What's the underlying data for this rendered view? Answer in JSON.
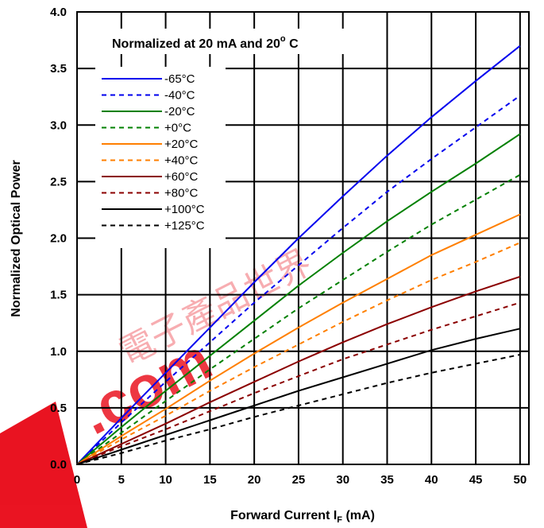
{
  "chart_data": {
    "type": "line",
    "title": "",
    "annotation": {
      "text": "Normalized at 20 mA and 20",
      "sup": "o",
      "suffix": " C"
    },
    "xlabel": {
      "main": "Forward Current I",
      "sub": "F",
      "suffix": " (mA)"
    },
    "ylabel": "Normalized Optical Power",
    "xlim": [
      0,
      51
    ],
    "ylim": [
      0,
      4.0
    ],
    "xticks": [
      0,
      5,
      10,
      15,
      20,
      25,
      30,
      35,
      40,
      45,
      50
    ],
    "yticks": [
      0.0,
      0.5,
      1.0,
      1.5,
      2.0,
      2.5,
      3.0,
      3.5,
      4.0
    ],
    "xtick_labels": [
      "0",
      "5",
      "10",
      "15",
      "20",
      "25",
      "30",
      "35",
      "40",
      "45",
      "50"
    ],
    "ytick_labels": [
      "0.0",
      "0.5",
      "1.0",
      "1.5",
      "2.0",
      "2.5",
      "3.0",
      "3.5",
      "4.0"
    ],
    "grid": true,
    "legend": "upper-left",
    "x": [
      0,
      5,
      10,
      15,
      20,
      25,
      30,
      35,
      40,
      45,
      50
    ],
    "series": [
      {
        "name": "-65°C",
        "color": "#0000ee",
        "dash": false,
        "values": [
          0,
          0.41,
          0.81,
          1.21,
          1.61,
          2.0,
          2.37,
          2.73,
          3.07,
          3.39,
          3.7
        ]
      },
      {
        "name": "-40°C",
        "color": "#0000ee",
        "dash": true,
        "values": [
          0,
          0.37,
          0.73,
          1.08,
          1.43,
          1.76,
          2.09,
          2.41,
          2.7,
          2.98,
          3.26
        ]
      },
      {
        "name": "-20°C",
        "color": "#008000",
        "dash": false,
        "values": [
          0,
          0.33,
          0.65,
          0.96,
          1.27,
          1.58,
          1.87,
          2.15,
          2.41,
          2.66,
          2.92
        ]
      },
      {
        "name": "+0°C",
        "color": "#008000",
        "dash": true,
        "values": [
          0,
          0.28,
          0.56,
          0.84,
          1.11,
          1.38,
          1.63,
          1.88,
          2.12,
          2.34,
          2.56
        ]
      },
      {
        "name": "+20°C",
        "color": "#ff7f00",
        "dash": false,
        "values": [
          0,
          0.25,
          0.49,
          0.74,
          0.98,
          1.21,
          1.43,
          1.64,
          1.85,
          2.03,
          2.21
        ]
      },
      {
        "name": "+40°C",
        "color": "#ff7f00",
        "dash": true,
        "values": [
          0,
          0.22,
          0.43,
          0.65,
          0.86,
          1.06,
          1.26,
          1.45,
          1.63,
          1.79,
          1.96
        ]
      },
      {
        "name": "+60°C",
        "color": "#8b0000",
        "dash": false,
        "values": [
          0,
          0.18,
          0.36,
          0.55,
          0.73,
          0.91,
          1.08,
          1.24,
          1.39,
          1.53,
          1.66
        ]
      },
      {
        "name": "+80°C",
        "color": "#8b0000",
        "dash": true,
        "values": [
          0,
          0.16,
          0.31,
          0.47,
          0.63,
          0.78,
          0.93,
          1.06,
          1.19,
          1.31,
          1.43
        ]
      },
      {
        "name": "+100°C",
        "color": "#000000",
        "dash": false,
        "values": [
          0,
          0.13,
          0.26,
          0.39,
          0.52,
          0.65,
          0.77,
          0.89,
          1.01,
          1.11,
          1.2
        ]
      },
      {
        "name": "+125°C",
        "color": "#000000",
        "dash": true,
        "values": [
          0,
          0.1,
          0.21,
          0.31,
          0.42,
          0.52,
          0.62,
          0.72,
          0.81,
          0.89,
          0.97
        ]
      }
    ]
  },
  "watermark": {
    "text": ".com",
    "color": "#e8000f"
  }
}
